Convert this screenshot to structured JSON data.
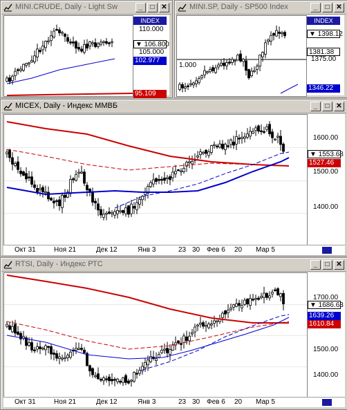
{
  "windows": {
    "crude": {
      "title": "MINI.CRUDE, Daily - Light Sw",
      "index_label": "INDEX",
      "axis_labels": [
        "110.000",
        "105.000"
      ],
      "tags": {
        "last": "▼ 106.800",
        "blue": "102.977",
        "red": "95.109"
      }
    },
    "sp": {
      "title": "MINI.SP, Daily - SP500 Index",
      "index_label": "INDEX",
      "axis_labels": [
        "1375.00"
      ],
      "inline_label": "1.000",
      "tags": {
        "last": "▼ 1398.12",
        "white": "1381.38",
        "blue": "1346.22"
      }
    },
    "micex": {
      "title": "MICEX, Daily - Индекс ММВБ",
      "axis_labels": [
        "1600.00",
        "1500.00",
        "1400.00"
      ],
      "tags": {
        "last": "▼ 1553.68",
        "red": "1527.46"
      },
      "x_labels": [
        "Окт 31",
        "Ноя 21",
        "Дек 12",
        "Янв 3",
        "23",
        "30",
        "Фев 6",
        "20",
        "Мар 5"
      ]
    },
    "rtsi": {
      "title": "RTSI, Daily - Индекс РТС",
      "axis_labels": [
        "1700.00",
        "1500.00",
        "1400.00"
      ],
      "tags": {
        "last": "▼ 1686.63",
        "blue": "1639.26",
        "red": "1610.84"
      },
      "x_labels": [
        "Окт 31",
        "Ноя 21",
        "Дек 12",
        "Янв 3",
        "23",
        "30",
        "Фев 6",
        "20",
        "Мар 5"
      ]
    }
  },
  "buttons": {
    "minimize": "_",
    "maximize": "□",
    "close": "✕"
  },
  "colors": {
    "candle": "#000000",
    "ma_blue": "#0000cc",
    "ma_red": "#cc0000"
  }
}
